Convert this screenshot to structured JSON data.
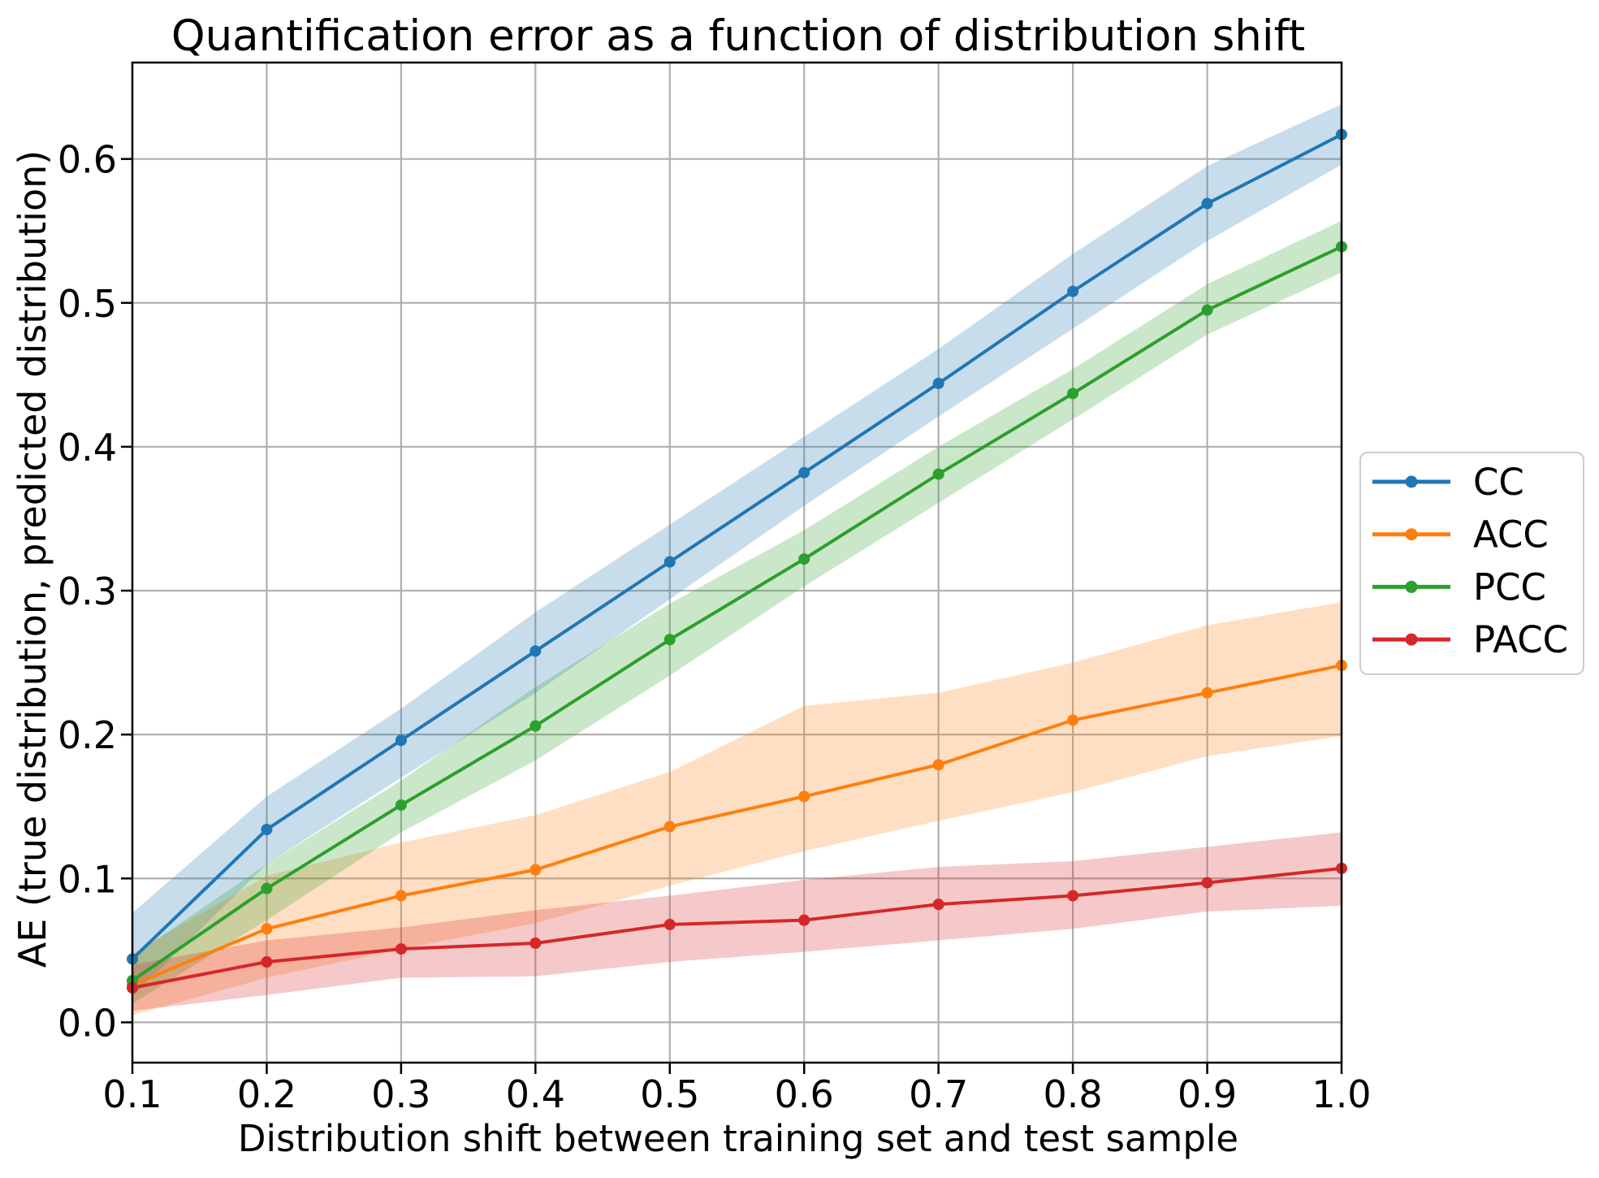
{
  "chart_data": {
    "type": "line",
    "title": "Quantification error as a function of distribution shift",
    "xlabel": "Distribution shift between training set and test sample",
    "ylabel": "AE (true distribution, predicted distribution)",
    "x": [
      0.1,
      0.2,
      0.3,
      0.4,
      0.5,
      0.6,
      0.7,
      0.8,
      0.9,
      1.0
    ],
    "xlim": [
      0.1,
      1.0
    ],
    "ylim": [
      -0.028,
      0.667
    ],
    "xticks": [
      0.1,
      0.2,
      0.3,
      0.4,
      0.5,
      0.6,
      0.7,
      0.8,
      0.9,
      1.0
    ],
    "yticks": [
      0.0,
      0.1,
      0.2,
      0.3,
      0.4,
      0.5,
      0.6
    ],
    "grid": true,
    "grid_color": "#b0b0b0",
    "legend_position": "right",
    "band_alpha": 0.25,
    "series": [
      {
        "name": "CC",
        "color": "#1f77b4",
        "values": [
          0.044,
          0.134,
          0.196,
          0.258,
          0.32,
          0.382,
          0.444,
          0.508,
          0.569,
          0.617
        ],
        "band_lo": [
          0.018,
          0.11,
          0.17,
          0.229,
          0.294,
          0.359,
          0.421,
          0.482,
          0.543,
          0.596
        ],
        "band_hi": [
          0.076,
          0.157,
          0.218,
          0.285,
          0.346,
          0.407,
          0.468,
          0.534,
          0.595,
          0.638
        ]
      },
      {
        "name": "ACC",
        "color": "#ff7f0e",
        "values": [
          0.026,
          0.065,
          0.088,
          0.106,
          0.136,
          0.157,
          0.179,
          0.21,
          0.229,
          0.248
        ],
        "band_lo": [
          0.005,
          0.031,
          0.051,
          0.069,
          0.095,
          0.119,
          0.14,
          0.16,
          0.185,
          0.199
        ],
        "band_hi": [
          0.048,
          0.102,
          0.125,
          0.144,
          0.174,
          0.22,
          0.229,
          0.25,
          0.276,
          0.292
        ]
      },
      {
        "name": "PCC",
        "color": "#2ca02c",
        "values": [
          0.029,
          0.093,
          0.151,
          0.206,
          0.266,
          0.322,
          0.381,
          0.437,
          0.495,
          0.539
        ],
        "band_lo": [
          0.013,
          0.071,
          0.132,
          0.182,
          0.241,
          0.303,
          0.361,
          0.419,
          0.478,
          0.521
        ],
        "band_hi": [
          0.046,
          0.11,
          0.168,
          0.233,
          0.291,
          0.342,
          0.4,
          0.454,
          0.513,
          0.557
        ]
      },
      {
        "name": "PACC",
        "color": "#d62728",
        "values": [
          0.024,
          0.042,
          0.051,
          0.055,
          0.068,
          0.071,
          0.082,
          0.088,
          0.097,
          0.107
        ],
        "band_lo": [
          0.008,
          0.019,
          0.031,
          0.032,
          0.042,
          0.049,
          0.057,
          0.065,
          0.077,
          0.081
        ],
        "band_hi": [
          0.04,
          0.057,
          0.066,
          0.078,
          0.088,
          0.099,
          0.108,
          0.112,
          0.122,
          0.132
        ]
      }
    ]
  }
}
